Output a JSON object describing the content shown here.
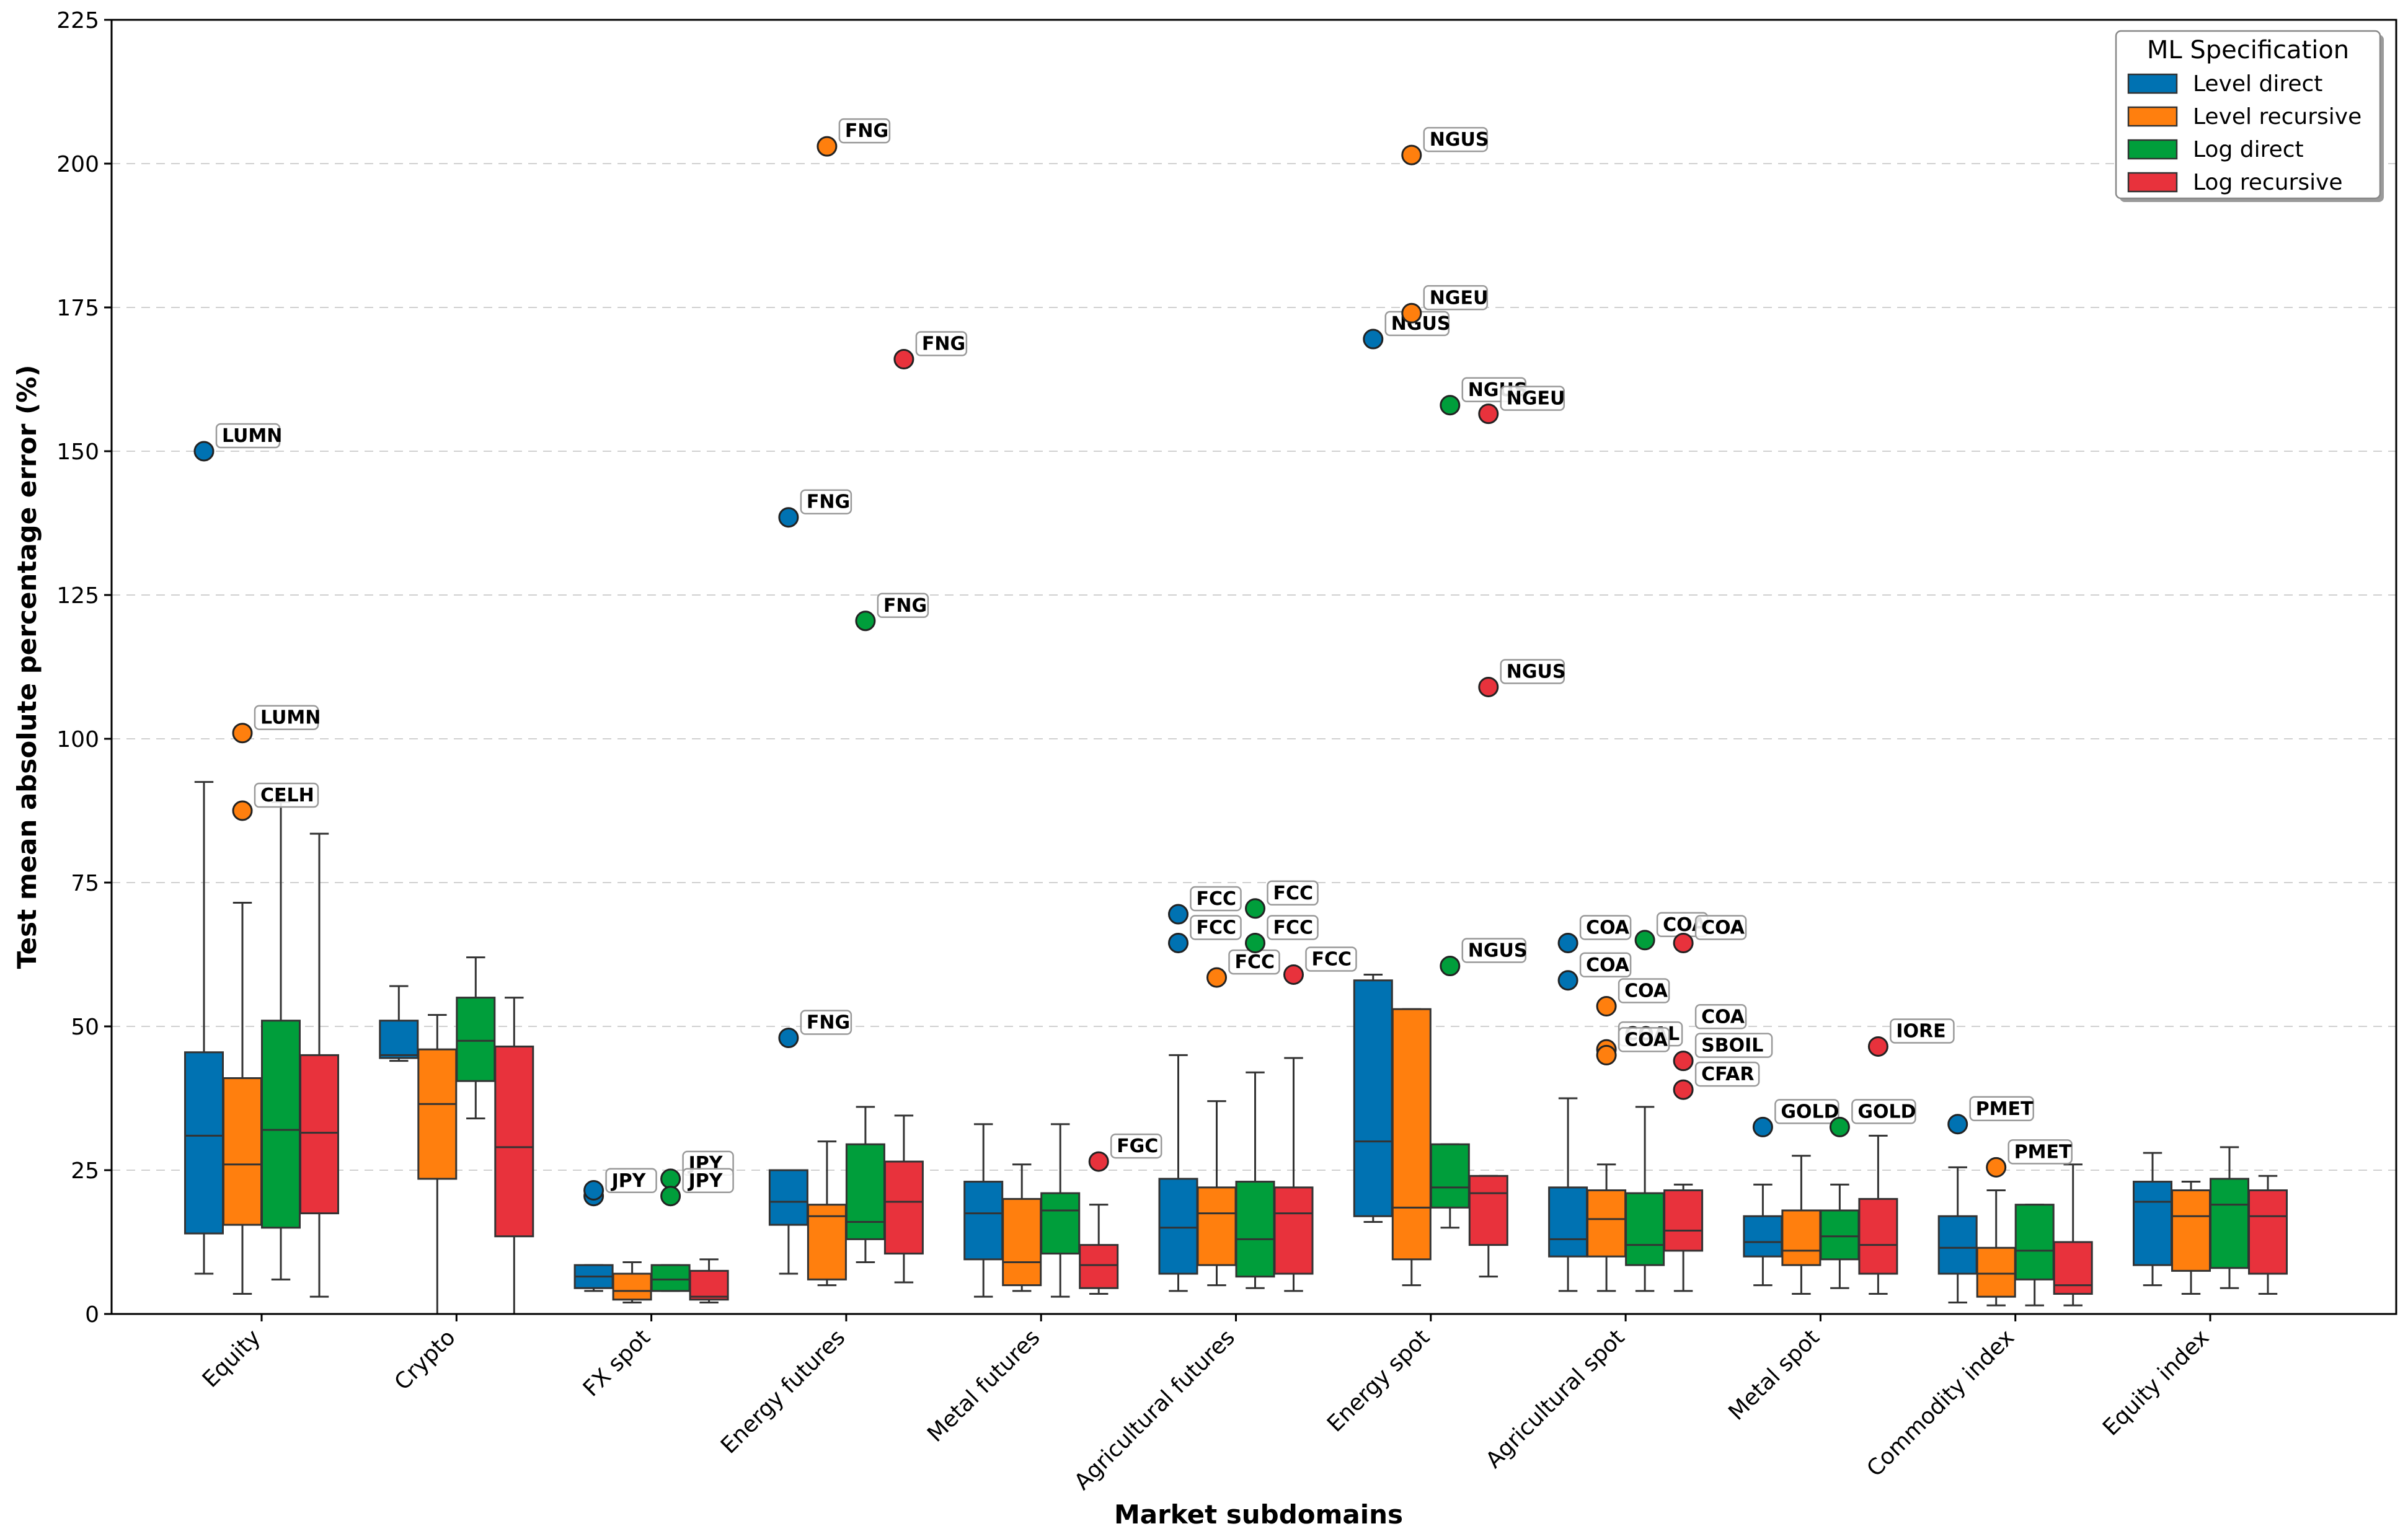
{
  "chart_data": {
    "type": "box",
    "title": "",
    "xlabel": "Market subdomains",
    "ylabel": "Test mean absolute percentage error (%)",
    "ylim": [
      0,
      225
    ],
    "yticks": [
      0,
      25,
      50,
      75,
      100,
      125,
      150,
      175,
      200,
      225
    ],
    "grid": "horizontal dashed",
    "legend": {
      "title": "ML Specification",
      "position": "top-right"
    },
    "categories": [
      "Equity",
      "Crypto",
      "FX spot",
      "Energy futures",
      "Metal futures",
      "Agricultural futures",
      "Energy spot",
      "Agricultural spot",
      "Metal spot",
      "Commodity index",
      "Equity index"
    ],
    "series": [
      {
        "name": "Level direct",
        "color": "#0072B2",
        "boxes": [
          {
            "whislo": 7,
            "q1": 14,
            "med": 31,
            "q3": 45.5,
            "whishi": 92.5
          },
          {
            "whislo": 44,
            "q1": 44.5,
            "med": 45,
            "q3": 51,
            "whishi": 57
          },
          {
            "whislo": 4,
            "q1": 4.5,
            "med": 6.5,
            "q3": 8.5,
            "whishi": 8.5
          },
          {
            "whislo": 7,
            "q1": 15.5,
            "med": 19.5,
            "q3": 25,
            "whishi": 25
          },
          {
            "whislo": 3,
            "q1": 9.5,
            "med": 17.5,
            "q3": 23,
            "whishi": 33
          },
          {
            "whislo": 4,
            "q1": 7,
            "med": 15,
            "q3": 23.5,
            "whishi": 45
          },
          {
            "whislo": 16,
            "q1": 17,
            "med": 30,
            "q3": 58,
            "whishi": 59
          },
          {
            "whislo": 4,
            "q1": 10,
            "med": 13,
            "q3": 22,
            "whishi": 37.5
          },
          {
            "whislo": 5,
            "q1": 10,
            "med": 12.5,
            "q3": 17,
            "whishi": 22.5
          },
          {
            "whislo": 2,
            "q1": 7,
            "med": 11.5,
            "q3": 17,
            "whishi": 25.5
          },
          {
            "whislo": 5,
            "q1": 8.5,
            "med": 19.5,
            "q3": 23,
            "whishi": 28
          }
        ],
        "outliers": [
          {
            "cat": 0,
            "y": 150,
            "label": "LUMN"
          },
          {
            "cat": 2,
            "y": 20.5,
            "label": "JPY"
          },
          {
            "cat": 2,
            "y": 21.5,
            "label": ""
          },
          {
            "cat": 3,
            "y": 138.5,
            "label": "FNG"
          },
          {
            "cat": 3,
            "y": 48,
            "label": "FNG"
          },
          {
            "cat": 5,
            "y": 69.5,
            "label": "FCC"
          },
          {
            "cat": 5,
            "y": 64.5,
            "label": "FCC"
          },
          {
            "cat": 6,
            "y": 169.5,
            "label": "NGUS"
          },
          {
            "cat": 7,
            "y": 64.5,
            "label": "COA"
          },
          {
            "cat": 7,
            "y": 58,
            "label": "COA"
          },
          {
            "cat": 8,
            "y": 32.5,
            "label": "GOLD"
          },
          {
            "cat": 9,
            "y": 33,
            "label": "PMET"
          }
        ]
      },
      {
        "name": "Level recursive",
        "color": "#FF7F0E",
        "boxes": [
          {
            "whislo": 3.5,
            "q1": 15.5,
            "med": 26,
            "q3": 41,
            "whishi": 71.5
          },
          {
            "whislo": 0,
            "q1": 23.5,
            "med": 36.5,
            "q3": 46,
            "whishi": 52
          },
          {
            "whislo": 2,
            "q1": 2.5,
            "med": 4,
            "q3": 7,
            "whishi": 9
          },
          {
            "whislo": 5,
            "q1": 6,
            "med": 17,
            "q3": 19,
            "whishi": 30
          },
          {
            "whislo": 4,
            "q1": 5,
            "med": 9,
            "q3": 20,
            "whishi": 26
          },
          {
            "whislo": 5,
            "q1": 8.5,
            "med": 17.5,
            "q3": 22,
            "whishi": 37
          },
          {
            "whislo": 5,
            "q1": 9.5,
            "med": 18.5,
            "q3": 53,
            "whishi": 53
          },
          {
            "whislo": 4,
            "q1": 10,
            "med": 16.5,
            "q3": 21.5,
            "whishi": 26
          },
          {
            "whislo": 3.5,
            "q1": 8.5,
            "med": 11,
            "q3": 18,
            "whishi": 27.5
          },
          {
            "whislo": 1.5,
            "q1": 3,
            "med": 7,
            "q3": 11.5,
            "whishi": 21.5
          },
          {
            "whislo": 3.5,
            "q1": 7.5,
            "med": 17,
            "q3": 21.5,
            "whishi": 23
          }
        ],
        "outliers": [
          {
            "cat": 0,
            "y": 101,
            "label": "LUMN"
          },
          {
            "cat": 0,
            "y": 87.5,
            "label": "CELH"
          },
          {
            "cat": 3,
            "y": 203,
            "label": "FNG"
          },
          {
            "cat": 5,
            "y": 58.5,
            "label": "FCC"
          },
          {
            "cat": 6,
            "y": 201.5,
            "label": "NGUS"
          },
          {
            "cat": 6,
            "y": 174,
            "label": "NGEU"
          },
          {
            "cat": 7,
            "y": 53.5,
            "label": "COA"
          },
          {
            "cat": 7,
            "y": 46,
            "label": "COAL"
          },
          {
            "cat": 7,
            "y": 45,
            "label": "COA"
          },
          {
            "cat": 9,
            "y": 25.5,
            "label": "PMET"
          }
        ]
      },
      {
        "name": "Log direct",
        "color": "#009E3B",
        "boxes": [
          {
            "whislo": 6,
            "q1": 15,
            "med": 32,
            "q3": 51,
            "whishi": 89
          },
          {
            "whislo": 34,
            "q1": 40.5,
            "med": 47.5,
            "q3": 55,
            "whishi": 62
          },
          {
            "whislo": 4,
            "q1": 4,
            "med": 6,
            "q3": 8.5,
            "whishi": 8.5
          },
          {
            "whislo": 9,
            "q1": 13,
            "med": 16,
            "q3": 29.5,
            "whishi": 36
          },
          {
            "whislo": 3,
            "q1": 10.5,
            "med": 18,
            "q3": 21,
            "whishi": 33
          },
          {
            "whislo": 4.5,
            "q1": 6.5,
            "med": 13,
            "q3": 23,
            "whishi": 42
          },
          {
            "whislo": 15,
            "q1": 18.5,
            "med": 22,
            "q3": 29.5,
            "whishi": 29.5
          },
          {
            "whislo": 4,
            "q1": 8.5,
            "med": 12,
            "q3": 21,
            "whishi": 36
          },
          {
            "whislo": 4.5,
            "q1": 9.5,
            "med": 13.5,
            "q3": 18,
            "whishi": 22.5
          },
          {
            "whislo": 1.5,
            "q1": 6,
            "med": 11,
            "q3": 19,
            "whishi": 19
          },
          {
            "whislo": 4.5,
            "q1": 8,
            "med": 19,
            "q3": 23.5,
            "whishi": 29
          }
        ],
        "outliers": [
          {
            "cat": 2,
            "y": 23.5,
            "label": "JPY"
          },
          {
            "cat": 2,
            "y": 20.5,
            "label": "JPY"
          },
          {
            "cat": 3,
            "y": 120.5,
            "label": "FNG"
          },
          {
            "cat": 5,
            "y": 70.5,
            "label": "FCC"
          },
          {
            "cat": 5,
            "y": 64.5,
            "label": "FCC"
          },
          {
            "cat": 6,
            "y": 158,
            "label": "NGUS"
          },
          {
            "cat": 6,
            "y": 60.5,
            "label": "NGUS"
          },
          {
            "cat": 7,
            "y": 65,
            "label": "COA"
          },
          {
            "cat": 8,
            "y": 32.5,
            "label": "GOLD"
          }
        ]
      },
      {
        "name": "Log recursive",
        "color": "#E8323C",
        "boxes": [
          {
            "whislo": 3,
            "q1": 17.5,
            "med": 31.5,
            "q3": 45,
            "whishi": 83.5
          },
          {
            "whislo": 0,
            "q1": 13.5,
            "med": 29,
            "q3": 46.5,
            "whishi": 55
          },
          {
            "whislo": 2,
            "q1": 2.5,
            "med": 3,
            "q3": 7.5,
            "whishi": 9.5
          },
          {
            "whislo": 5.5,
            "q1": 10.5,
            "med": 19.5,
            "q3": 26.5,
            "whishi": 34.5
          },
          {
            "whislo": 3.5,
            "q1": 4.5,
            "med": 8.5,
            "q3": 12,
            "whishi": 19
          },
          {
            "whislo": 4,
            "q1": 7,
            "med": 17.5,
            "q3": 22,
            "whishi": 44.5
          },
          {
            "whislo": 6.5,
            "q1": 12,
            "med": 21,
            "q3": 24,
            "whishi": 24
          },
          {
            "whislo": 4,
            "q1": 11,
            "med": 14.5,
            "q3": 21.5,
            "whishi": 22.5
          },
          {
            "whislo": 3.5,
            "q1": 7,
            "med": 12,
            "q3": 20,
            "whishi": 31
          },
          {
            "whislo": 1.5,
            "q1": 3.5,
            "med": 5,
            "q3": 12.5,
            "whishi": 26
          },
          {
            "whislo": 3.5,
            "q1": 7,
            "med": 17,
            "q3": 21.5,
            "whishi": 24
          }
        ],
        "outliers": [
          {
            "cat": 3,
            "y": 166,
            "label": "FNG"
          },
          {
            "cat": 4,
            "y": 26.5,
            "label": "FGC"
          },
          {
            "cat": 5,
            "y": 59,
            "label": "FCC"
          },
          {
            "cat": 6,
            "y": 156.5,
            "label": "NGEU"
          },
          {
            "cat": 6,
            "y": 109,
            "label": "NGUS"
          },
          {
            "cat": 7,
            "y": 64.5,
            "label": "COA"
          },
          {
            "cat": 7,
            "y": 44,
            "label": "SBOIL"
          },
          {
            "cat": 7,
            "y": 39,
            "label": "CFAR"
          },
          {
            "cat": 8,
            "y": 46.5,
            "label": "IORE"
          }
        ]
      }
    ],
    "extra_annotations": [
      {
        "cat": 7,
        "series": 3,
        "y": 49,
        "label": "COA"
      }
    ]
  }
}
